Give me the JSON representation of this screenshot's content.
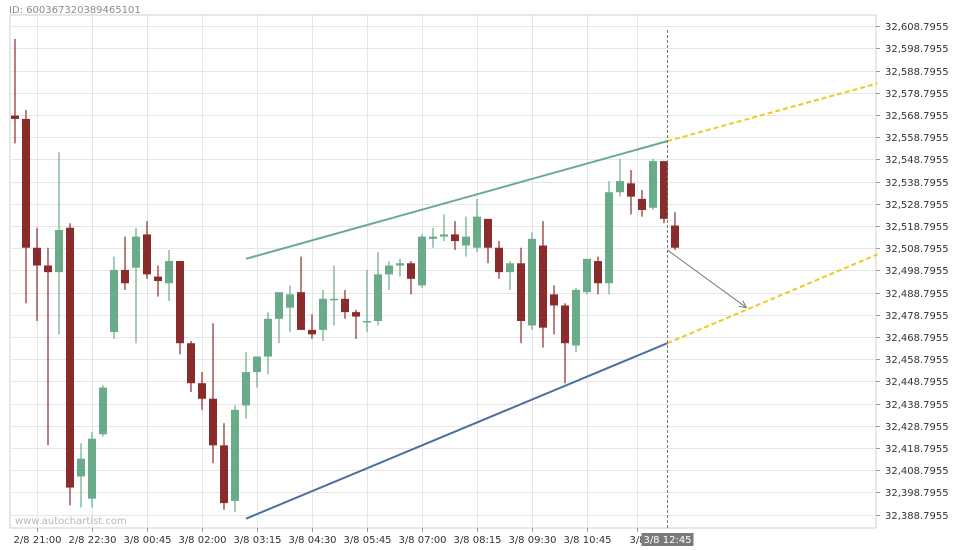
{
  "header": {
    "id_text": "ID: 6003673203894651​01"
  },
  "watermark": "www.autochartist.com",
  "colors": {
    "up": "#6aab8a",
    "down": "#8b2c2c",
    "resistance": "#6aab8a",
    "support": "#4a6fa0",
    "projection": "#f2c81e",
    "forecast_arrow": "#7a7a7a",
    "grid": "#e6e6e6",
    "current_marker": "#777777"
  },
  "chart_data": {
    "type": "candlestick",
    "title": "",
    "xlabel": "",
    "ylabel": "",
    "grid": true,
    "ylim": [
      32382.7955,
      32613.7955
    ],
    "y_ticks": [
      "32,608.7955",
      "32,598.7955",
      "32,588.7955",
      "32,578.7955",
      "32,568.7955",
      "32,558.7955",
      "32,548.7955",
      "32,538.7955",
      "32,528.7955",
      "32,518.7955",
      "32,508.7955",
      "32,498.7955",
      "32,488.7955",
      "32,478.7955",
      "32,468.7955",
      "32,458.7955",
      "32,448.7955",
      "32,438.7955",
      "32,428.7955",
      "32,418.7955",
      "32,408.7955",
      "32,398.7955",
      "32,388.7955"
    ],
    "x_ticks": [
      {
        "label": "2/8 21:00",
        "bar": 2
      },
      {
        "label": "2/8 22:30",
        "bar": 7
      },
      {
        "label": "3/8 00:45",
        "bar": 12
      },
      {
        "label": "3/8 02:00",
        "bar": 17
      },
      {
        "label": "3/8 03:15",
        "bar": 22
      },
      {
        "label": "3/8 04:30",
        "bar": 27
      },
      {
        "label": "3/8 05:45",
        "bar": 32
      },
      {
        "label": "3/8 07:00",
        "bar": 37
      },
      {
        "label": "3/8 08:15",
        "bar": 42
      },
      {
        "label": "3/8 09:30",
        "bar": 47
      },
      {
        "label": "3/8 10:45",
        "bar": 52
      },
      {
        "label": "3/8",
        "bar": 56.5
      }
    ],
    "current_time_label": "3/8 12:45",
    "current_bar": 59.3,
    "candles": [
      [
        32568.5,
        32603,
        32556,
        32567
      ],
      [
        32567,
        32571,
        32484,
        32509
      ],
      [
        32509,
        32518,
        32476,
        32501
      ],
      [
        32501,
        32509,
        32420,
        32498
      ],
      [
        32498,
        32552,
        32470,
        32517
      ],
      [
        32518,
        32520,
        32393,
        32401
      ],
      [
        32406,
        32421,
        32392,
        32414
      ],
      [
        32396,
        32426,
        32392,
        32423
      ],
      [
        32425,
        32447,
        32424,
        32446
      ],
      [
        32471,
        32505,
        32468,
        32499
      ],
      [
        32499,
        32514,
        32490,
        32493
      ],
      [
        32500,
        32518,
        32466,
        32514
      ],
      [
        32515,
        32521,
        32495,
        32497
      ],
      [
        32496,
        32501,
        32487,
        32494
      ],
      [
        32493,
        32508,
        32485,
        32503
      ],
      [
        32503,
        32503,
        32461,
        32466
      ],
      [
        32466,
        32467,
        32444,
        32448
      ],
      [
        32448,
        32453,
        32436,
        32441
      ],
      [
        32441,
        32475,
        32412,
        32420
      ],
      [
        32420,
        32430,
        32391,
        32394
      ],
      [
        32395,
        32438,
        32390,
        32436
      ],
      [
        32438,
        32462,
        32432,
        32453
      ],
      [
        32453,
        32460,
        32446,
        32460
      ],
      [
        32460,
        32480,
        32452,
        32477
      ],
      [
        32477,
        32489,
        32466,
        32489
      ],
      [
        32482,
        32492,
        32471,
        32488
      ],
      [
        32489,
        32505,
        32472,
        32472
      ],
      [
        32472,
        32479,
        32468,
        32470
      ],
      [
        32472,
        32490,
        32467,
        32486
      ],
      [
        32486,
        32501,
        32474,
        32486
      ],
      [
        32486,
        32490,
        32477,
        32480
      ],
      [
        32480,
        32481,
        32468,
        32478
      ],
      [
        32476,
        32499,
        32471,
        32476
      ],
      [
        32476,
        32507,
        32474,
        32497
      ],
      [
        32497,
        32503,
        32490,
        32501
      ],
      [
        32501,
        32504,
        32496,
        32502
      ],
      [
        32502,
        32503,
        32488,
        32495
      ],
      [
        32492,
        32515,
        32491,
        32514
      ],
      [
        32513,
        32518,
        32509,
        32514
      ],
      [
        32514,
        32524,
        32512,
        32515
      ],
      [
        32515,
        32521,
        32508,
        32512
      ],
      [
        32510,
        32523,
        32505,
        32514
      ],
      [
        32509,
        32531,
        32507,
        32523
      ],
      [
        32522,
        32521,
        32502,
        32509
      ],
      [
        32509,
        32512,
        32495,
        32498
      ],
      [
        32498,
        32503,
        32490,
        32502
      ],
      [
        32502,
        32509,
        32466,
        32476
      ],
      [
        32474,
        32516,
        32472,
        32513
      ],
      [
        32510,
        32521,
        32464,
        32473
      ],
      [
        32488,
        32492,
        32470,
        32483
      ],
      [
        32483,
        32484,
        32448,
        32466
      ],
      [
        32465,
        32491,
        32462,
        32490
      ],
      [
        32489,
        32504,
        32488,
        32504
      ],
      [
        32503,
        32505,
        32488,
        32493
      ],
      [
        32493,
        32539,
        32488,
        32534
      ],
      [
        32534,
        32549,
        32532,
        32539
      ],
      [
        32538,
        32544,
        32524,
        32532
      ],
      [
        32531,
        32535,
        32523,
        32526
      ],
      [
        32527,
        32549,
        32526,
        32548
      ],
      [
        32548,
        32548,
        32520,
        32522
      ],
      [
        32519,
        32525,
        32508,
        32509
      ]
    ],
    "lines": [
      {
        "name": "resistance",
        "from": [
          21.0,
          32504
        ],
        "to": [
          59.3,
          32557
        ]
      },
      {
        "name": "support",
        "from": [
          21.0,
          32387
        ],
        "to": [
          59.3,
          32466
        ]
      }
    ],
    "projections": [
      {
        "name": "resistance",
        "from": [
          59.3,
          32557
        ],
        "to": [
          78.4,
          32583
        ]
      },
      {
        "name": "support",
        "from": [
          59.3,
          32466
        ],
        "to": [
          78.4,
          32506
        ]
      }
    ],
    "forecast_arrow": {
      "from": [
        59.3,
        32508
      ],
      "to": [
        66.5,
        32482
      ]
    }
  }
}
